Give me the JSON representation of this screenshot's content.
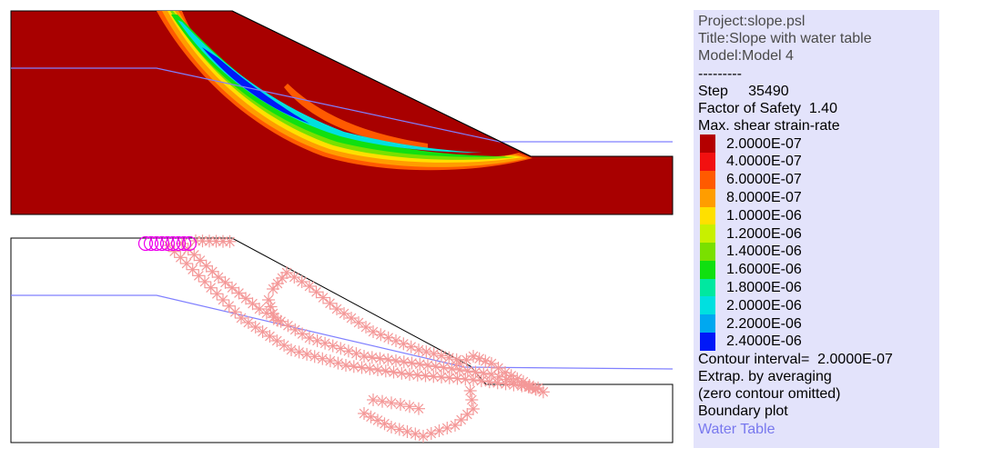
{
  "info": {
    "project": "Project:slope.psl",
    "title": "Title:Slope with water table",
    "model": "Model:Model 4",
    "separator": "---------",
    "step": "Step     35490",
    "fos": "Factor of Safety  1.40",
    "variable": "Max. shear strain-rate"
  },
  "contours": [
    {
      "value": "2.0000E-07",
      "color": "#b40000"
    },
    {
      "value": "4.0000E-07",
      "color": "#f21010"
    },
    {
      "value": "6.0000E-07",
      "color": "#ff5a00"
    },
    {
      "value": "8.0000E-07",
      "color": "#ff9d00"
    },
    {
      "value": "1.0000E-06",
      "color": "#ffe000"
    },
    {
      "value": "1.2000E-06",
      "color": "#c8f000"
    },
    {
      "value": "1.4000E-06",
      "color": "#7ae000"
    },
    {
      "value": "1.6000E-06",
      "color": "#10e010"
    },
    {
      "value": "1.8000E-06",
      "color": "#00e8a0"
    },
    {
      "value": "2.0000E-06",
      "color": "#00e0e0"
    },
    {
      "value": "2.2000E-06",
      "color": "#00a8f0"
    },
    {
      "value": "2.4000E-06",
      "color": "#0018f8"
    }
  ],
  "notes": {
    "interval": "Contour interval=  2.0000E-07",
    "extrap": "Extrap. by averaging",
    "zero": "(zero contour omitted)",
    "boundary": "Boundary plot",
    "water": "Water Table"
  },
  "colors": {
    "soil": "#a80000",
    "water_table": "#8080ff",
    "plastic_star": "#f49898",
    "tension_circle": "#ee00ee",
    "legend_bg": "#e3e3fb"
  }
}
